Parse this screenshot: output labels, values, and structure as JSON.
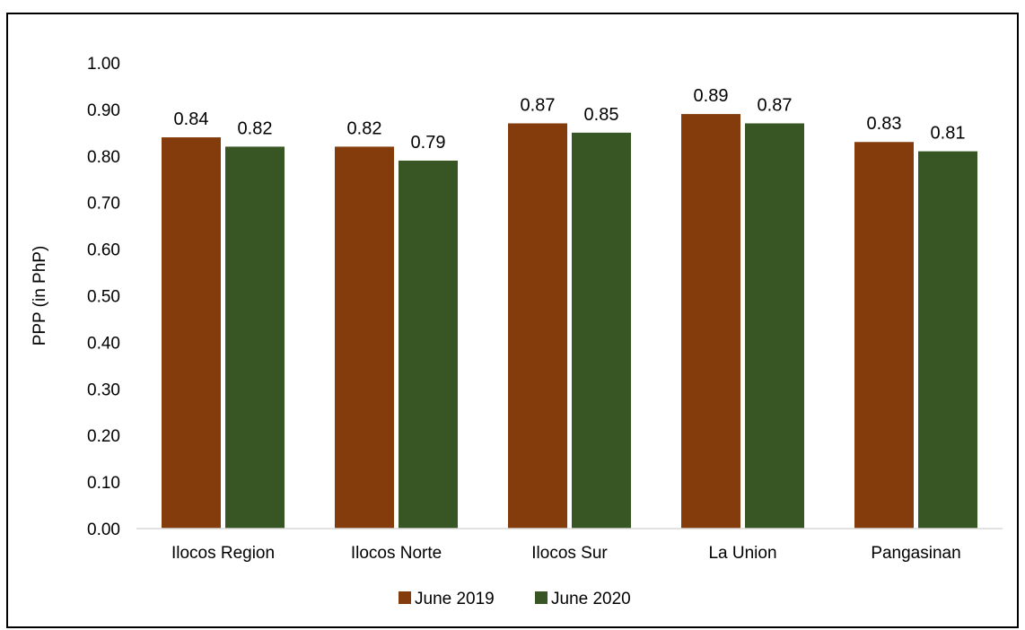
{
  "chart_data": {
    "type": "bar",
    "categories": [
      "Ilocos Region",
      "Ilocos Norte",
      "Ilocos Sur",
      "La Union",
      "Pangasinan"
    ],
    "series": [
      {
        "name": "June 2019",
        "values": [
          0.84,
          0.82,
          0.87,
          0.89,
          0.83
        ],
        "color": "#843C0C"
      },
      {
        "name": "June 2020",
        "values": [
          0.82,
          0.79,
          0.85,
          0.87,
          0.81
        ],
        "color": "#375623"
      }
    ],
    "title": "",
    "xlabel": "",
    "ylabel": "PPP (in PhP)",
    "ylim": [
      0,
      1.0
    ],
    "yticks": [
      "0.00",
      "0.10",
      "0.20",
      "0.30",
      "0.40",
      "0.50",
      "0.60",
      "0.70",
      "0.80",
      "0.90",
      "1.00"
    ],
    "grid": false,
    "legend_position": "bottom"
  }
}
